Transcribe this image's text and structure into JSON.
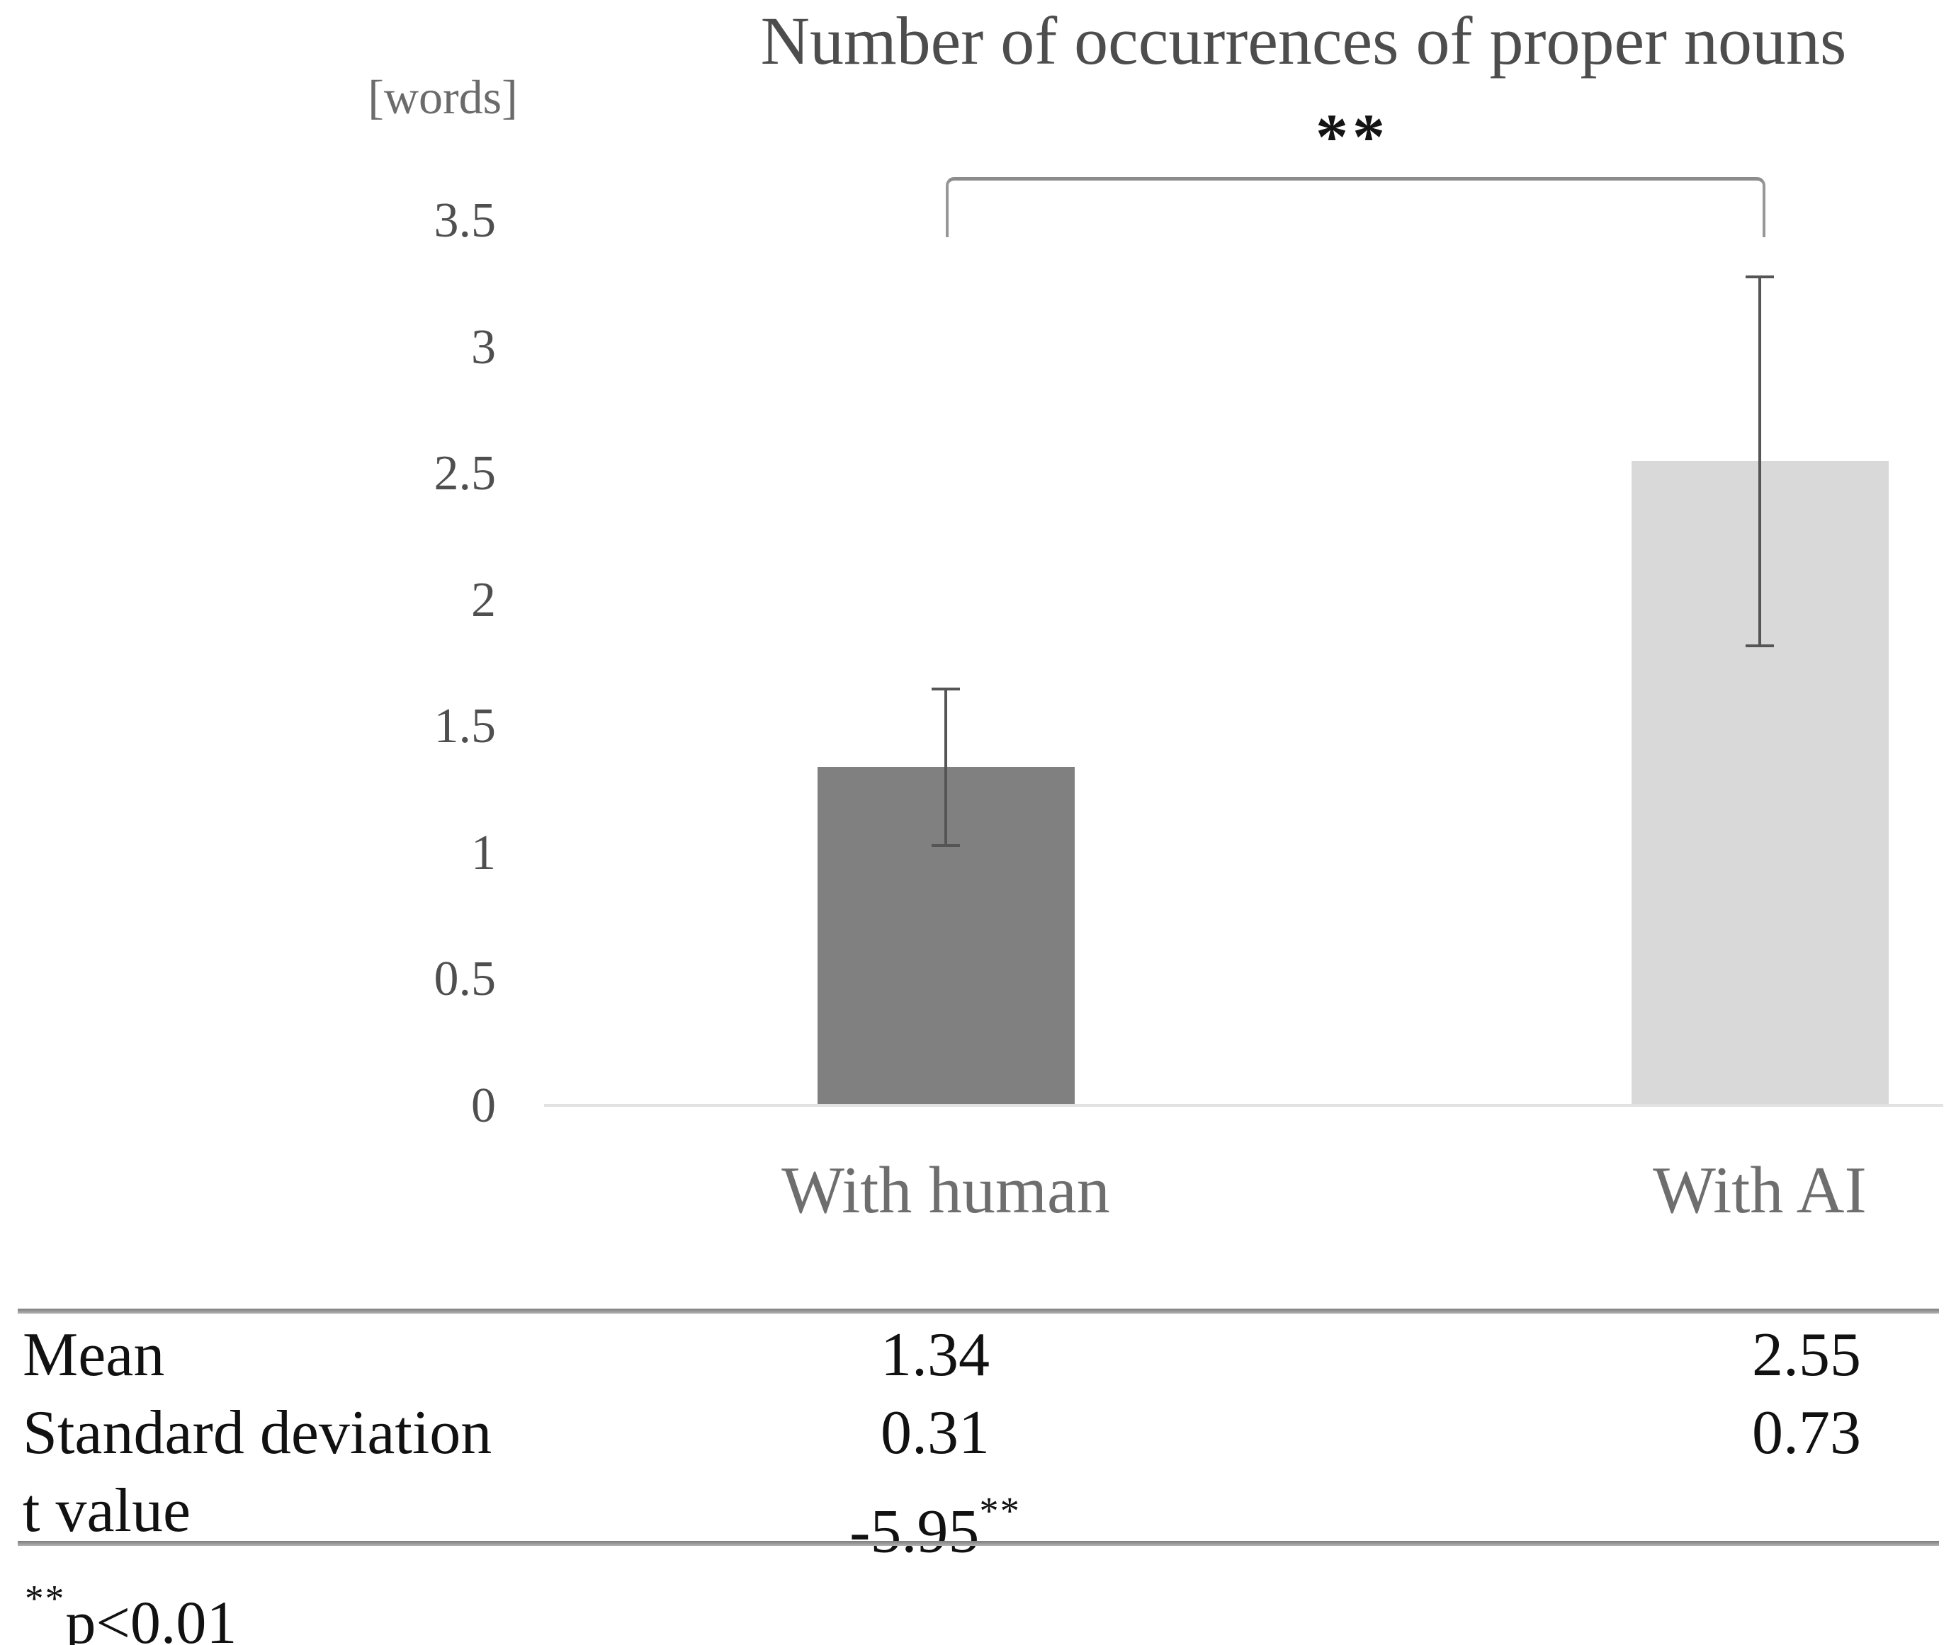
{
  "chart_data": {
    "type": "bar",
    "title": "Number of occurrences of proper nouns",
    "ylabel": "[words]",
    "xlabel": "",
    "categories": [
      "With human",
      "With AI"
    ],
    "series": [
      {
        "name": "Mean",
        "values": [
          1.34,
          2.55
        ],
        "errors": [
          0.31,
          0.73
        ]
      }
    ],
    "values": [
      1.34,
      2.55
    ],
    "errors": [
      0.31,
      0.73
    ],
    "bar_colors": [
      "#808080",
      "#d9d9d9"
    ],
    "error_bar_color": "#555555",
    "ylim": [
      0,
      3.5
    ],
    "yticks": [
      "3.5",
      "3",
      "2.5",
      "2",
      "1.5",
      "1",
      "0.5",
      "0"
    ],
    "grid": false,
    "legend": "none",
    "significance": {
      "label": "**",
      "between": [
        "With human",
        "With AI"
      ]
    }
  },
  "table": {
    "columns": [
      "",
      "With human",
      "With AI"
    ],
    "rows": [
      {
        "label": "Mean",
        "with_human": "1.34",
        "with_human_sup": "",
        "with_ai": "2.55"
      },
      {
        "label": "Standard deviation",
        "with_human": "0.31",
        "with_human_sup": "",
        "with_ai": "0.73"
      },
      {
        "label": "t value",
        "with_human": "-5.95",
        "with_human_sup": "**",
        "with_ai": ""
      }
    ],
    "footnote": {
      "sup": "**",
      "text": "p<0.01"
    }
  }
}
